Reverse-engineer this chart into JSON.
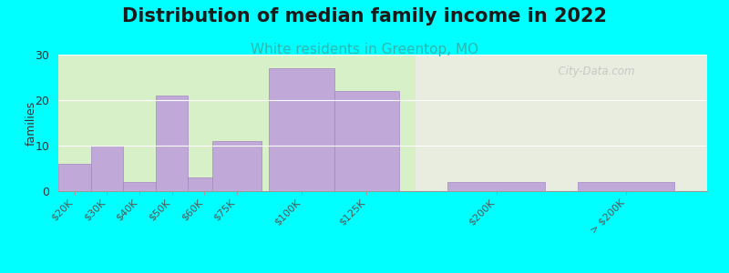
{
  "title": "Distribution of median family income in 2022",
  "subtitle": "White residents in Greentop, MO",
  "ylabel": "families",
  "background_outer": "#00FFFF",
  "background_inner_left": "#d8f0c8",
  "background_inner_right": "#e8ede0",
  "bar_color": "#c0a8d8",
  "bar_edge_color": "#a088c0",
  "categories": [
    "$20K",
    "$30K",
    "$40K",
    "$50K",
    "$60K",
    "$75K",
    "$100K",
    "$125K",
    "$200K",
    "> $200K"
  ],
  "values": [
    6,
    10,
    2,
    21,
    3,
    11,
    27,
    22,
    2,
    2
  ],
  "bar_positions": [
    0,
    1,
    2,
    3,
    4,
    5,
    7,
    9,
    13,
    17
  ],
  "bar_widths": [
    1,
    1,
    1,
    1,
    1,
    1.5,
    2,
    2,
    3,
    3
  ],
  "ylim": [
    0,
    30
  ],
  "yticks": [
    0,
    10,
    20,
    30
  ],
  "watermark": "  City-Data.com",
  "title_fontsize": 15,
  "subtitle_fontsize": 11,
  "subtitle_color": "#2ab8b0",
  "right_bg_start_pos": 10.5,
  "xlim_left": -0.5,
  "xlim_right": 19.5
}
